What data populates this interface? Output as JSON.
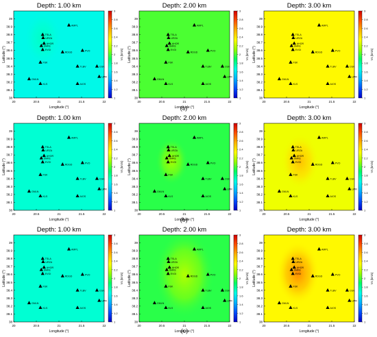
{
  "figure": {
    "row_labels": [
      "(a)",
      "(b)",
      "(c)"
    ],
    "colorbar_label": "Vs (km/s)",
    "colorbar_ticks": [
      "1",
      "1.2",
      "1.4",
      "1.6",
      "1.8",
      "2",
      "2.2",
      "2.4",
      "2.6",
      "2.8",
      "3"
    ],
    "colormap": [
      "#0000c8",
      "#0050ff",
      "#00b4ff",
      "#00ffe6",
      "#00ff64",
      "#96ff00",
      "#ffff00",
      "#ffb400",
      "#ff5000",
      "#d20000"
    ],
    "panel_titles": [
      "Depth: 1.00 km",
      "Depth: 2.00 km",
      "Depth: 3.00 km"
    ]
  },
  "chart_data": [
    {
      "type": "heatmap",
      "title": "Depth: 1.00 km",
      "xlabel": "Longitude (°)",
      "ylabel": "Latitude (°)",
      "xlim": [
        20,
        22
      ],
      "ylim": [
        38,
        39.1
      ],
      "xticks": [
        "20",
        "20.5",
        "21",
        "21.5",
        "22"
      ],
      "yticks": [
        "38",
        "38.1",
        "38.2",
        "38.3",
        "38.4",
        "38.5",
        "38.6",
        "38.7",
        "38.8",
        "38.9",
        "39"
      ],
      "clim": [
        1,
        3
      ],
      "base_value": 1.65,
      "anomalies": [
        {
          "lon": 20.65,
          "lat": 38.75,
          "delta": 0.08,
          "sigma": 0.35
        }
      ],
      "stations": [
        {
          "name": "AMPL",
          "lon": 21.22,
          "lat": 38.92
        },
        {
          "name": "TSLA",
          "lon": 20.64,
          "lat": 38.8
        },
        {
          "name": "URZA",
          "lon": 20.65,
          "lat": 38.76
        },
        {
          "name": "AHOR",
          "lon": 20.67,
          "lat": 38.69
        },
        {
          "name": "SMKE",
          "lon": 20.61,
          "lat": 38.66
        },
        {
          "name": "EVGI",
          "lon": 20.64,
          "lat": 38.61
        },
        {
          "name": "RDGD",
          "lon": 21.08,
          "lat": 38.58
        },
        {
          "name": "PVO",
          "lon": 21.52,
          "lat": 38.6
        },
        {
          "name": "FSK",
          "lon": 20.59,
          "lat": 38.45
        },
        {
          "name": "TLBV",
          "lon": 21.41,
          "lat": 38.4
        },
        {
          "name": "CGK",
          "lon": 21.84,
          "lat": 38.4
        },
        {
          "name": "UPR",
          "lon": 21.89,
          "lat": 38.27
        },
        {
          "name": "GMLN",
          "lon": 20.34,
          "lat": 38.24
        },
        {
          "name": "KLS",
          "lon": 20.59,
          "lat": 38.18
        },
        {
          "name": "AIOS",
          "lon": 21.41,
          "lat": 38.18
        }
      ]
    },
    {
      "type": "heatmap",
      "title": "Depth: 2.00 km",
      "xlabel": "Longitude (°)",
      "ylabel": "Latitude (°)",
      "xlim": [
        20,
        22
      ],
      "ylim": [
        38,
        39.1
      ],
      "xticks": [
        "20",
        "20.5",
        "21",
        "21.5",
        "22"
      ],
      "yticks": [
        "38",
        "38.1",
        "38.2",
        "38.3",
        "38.4",
        "38.5",
        "38.6",
        "38.7",
        "38.8",
        "38.9",
        "39"
      ],
      "clim": [
        1,
        3
      ],
      "base_value": 2.0,
      "anomalies": [],
      "stations": [
        {
          "name": "AMPL",
          "lon": 21.22,
          "lat": 38.92
        },
        {
          "name": "TSLA",
          "lon": 20.64,
          "lat": 38.8
        },
        {
          "name": "URZA",
          "lon": 20.65,
          "lat": 38.76
        },
        {
          "name": "AHOR",
          "lon": 20.67,
          "lat": 38.69
        },
        {
          "name": "SMKE",
          "lon": 20.61,
          "lat": 38.66
        },
        {
          "name": "EVGI",
          "lon": 20.64,
          "lat": 38.61
        },
        {
          "name": "RDGD",
          "lon": 21.08,
          "lat": 38.58
        },
        {
          "name": "PVO",
          "lon": 21.52,
          "lat": 38.6
        },
        {
          "name": "FSK",
          "lon": 20.59,
          "lat": 38.45
        },
        {
          "name": "TLBV",
          "lon": 21.41,
          "lat": 38.4
        },
        {
          "name": "CGK",
          "lon": 21.84,
          "lat": 38.4
        },
        {
          "name": "UPR",
          "lon": 21.89,
          "lat": 38.27
        },
        {
          "name": "GMLN",
          "lon": 20.34,
          "lat": 38.24
        },
        {
          "name": "KLS",
          "lon": 20.59,
          "lat": 38.18
        },
        {
          "name": "AIOS",
          "lon": 21.41,
          "lat": 38.18
        }
      ]
    },
    {
      "type": "heatmap",
      "title": "Depth: 3.00 km",
      "xlabel": "Longitude (°)",
      "ylabel": "Latitude (°)",
      "xlim": [
        20,
        22
      ],
      "ylim": [
        38,
        39.1
      ],
      "xticks": [
        "20",
        "20.5",
        "21",
        "21.5",
        "22"
      ],
      "yticks": [
        "38",
        "38.1",
        "38.2",
        "38.3",
        "38.4",
        "38.5",
        "38.6",
        "38.7",
        "38.8",
        "38.9",
        "39"
      ],
      "clim": [
        1,
        3
      ],
      "base_value": 2.35,
      "anomalies": [],
      "stations": [
        {
          "name": "AMPL",
          "lon": 21.22,
          "lat": 38.92
        },
        {
          "name": "TSLA",
          "lon": 20.64,
          "lat": 38.8
        },
        {
          "name": "URZA",
          "lon": 20.65,
          "lat": 38.76
        },
        {
          "name": "AHOR",
          "lon": 20.67,
          "lat": 38.69
        },
        {
          "name": "SMKE",
          "lon": 20.61,
          "lat": 38.66
        },
        {
          "name": "EVGI",
          "lon": 20.64,
          "lat": 38.61
        },
        {
          "name": "RDGD",
          "lon": 21.08,
          "lat": 38.58
        },
        {
          "name": "PVO",
          "lon": 21.52,
          "lat": 38.6
        },
        {
          "name": "FSK",
          "lon": 20.59,
          "lat": 38.45
        },
        {
          "name": "TLBV",
          "lon": 21.41,
          "lat": 38.4
        },
        {
          "name": "CGK",
          "lon": 21.84,
          "lat": 38.4
        },
        {
          "name": "UPR",
          "lon": 21.89,
          "lat": 38.27
        },
        {
          "name": "GMLN",
          "lon": 20.34,
          "lat": 38.24
        },
        {
          "name": "KLS",
          "lon": 20.59,
          "lat": 38.18
        },
        {
          "name": "AIOS",
          "lon": 21.41,
          "lat": 38.18
        }
      ]
    },
    {
      "type": "heatmap",
      "title": "Depth: 1.00 km",
      "xlabel": "Longitude (°)",
      "ylabel": "Latitude (°)",
      "xlim": [
        20,
        22
      ],
      "ylim": [
        38,
        39.1
      ],
      "xticks": [
        "20",
        "20.5",
        "21",
        "21.5",
        "22"
      ],
      "yticks": [
        "38",
        "38.1",
        "38.2",
        "38.3",
        "38.4",
        "38.5",
        "38.6",
        "38.7",
        "38.8",
        "38.9",
        "39"
      ],
      "clim": [
        1,
        3
      ],
      "base_value": 1.7,
      "anomalies": [],
      "stations": [
        {
          "name": "AMPL",
          "lon": 21.22,
          "lat": 38.92
        },
        {
          "name": "TSLA",
          "lon": 20.64,
          "lat": 38.8
        },
        {
          "name": "URZA",
          "lon": 20.65,
          "lat": 38.76
        },
        {
          "name": "AHOR",
          "lon": 20.67,
          "lat": 38.69
        },
        {
          "name": "SMKE",
          "lon": 20.61,
          "lat": 38.66
        },
        {
          "name": "EVGI",
          "lon": 20.64,
          "lat": 38.61
        },
        {
          "name": "RDGD",
          "lon": 21.08,
          "lat": 38.58
        },
        {
          "name": "PVO",
          "lon": 21.52,
          "lat": 38.6
        },
        {
          "name": "FSK",
          "lon": 20.59,
          "lat": 38.45
        },
        {
          "name": "TLBV",
          "lon": 21.41,
          "lat": 38.4
        },
        {
          "name": "CGK",
          "lon": 21.84,
          "lat": 38.4
        },
        {
          "name": "UPR",
          "lon": 21.89,
          "lat": 38.27
        },
        {
          "name": "GMLN",
          "lon": 20.34,
          "lat": 38.24
        },
        {
          "name": "KLS",
          "lon": 20.59,
          "lat": 38.18
        },
        {
          "name": "AIOS",
          "lon": 21.41,
          "lat": 38.18
        }
      ]
    },
    {
      "type": "heatmap",
      "title": "Depth: 2.00 km",
      "xlabel": "Longitude (°)",
      "ylabel": "Latitude (°)",
      "xlim": [
        20,
        22
      ],
      "ylim": [
        38,
        39.1
      ],
      "xticks": [
        "20",
        "20.5",
        "21",
        "21.5",
        "22"
      ],
      "yticks": [
        "38",
        "38.1",
        "38.2",
        "38.3",
        "38.4",
        "38.5",
        "38.6",
        "38.7",
        "38.8",
        "38.9",
        "39"
      ],
      "clim": [
        1,
        3
      ],
      "base_value": 1.95,
      "anomalies": [
        {
          "lon": 20.72,
          "lat": 38.62,
          "delta": 0.2,
          "sigma": 0.3
        }
      ],
      "stations": [
        {
          "name": "AMPL",
          "lon": 21.22,
          "lat": 38.92
        },
        {
          "name": "TSLA",
          "lon": 20.64,
          "lat": 38.8
        },
        {
          "name": "URZA",
          "lon": 20.65,
          "lat": 38.76
        },
        {
          "name": "AHOR",
          "lon": 20.67,
          "lat": 38.69
        },
        {
          "name": "SMKE",
          "lon": 20.61,
          "lat": 38.66
        },
        {
          "name": "EVGI",
          "lon": 20.64,
          "lat": 38.61
        },
        {
          "name": "RDGD",
          "lon": 21.08,
          "lat": 38.58
        },
        {
          "name": "PVO",
          "lon": 21.52,
          "lat": 38.6
        },
        {
          "name": "FSK",
          "lon": 20.59,
          "lat": 38.45
        },
        {
          "name": "TLBV",
          "lon": 21.41,
          "lat": 38.4
        },
        {
          "name": "CGK",
          "lon": 21.84,
          "lat": 38.4
        },
        {
          "name": "UPR",
          "lon": 21.89,
          "lat": 38.27
        },
        {
          "name": "GMLN",
          "lon": 20.34,
          "lat": 38.24
        },
        {
          "name": "KLS",
          "lon": 20.59,
          "lat": 38.18
        },
        {
          "name": "AIOS",
          "lon": 21.41,
          "lat": 38.18
        }
      ]
    },
    {
      "type": "heatmap",
      "title": "Depth: 3.00 km",
      "xlabel": "Longitude (°)",
      "ylabel": "Latitude (°)",
      "xlim": [
        20,
        22
      ],
      "ylim": [
        38,
        39.1
      ],
      "xticks": [
        "20",
        "20.5",
        "21",
        "21.5",
        "22"
      ],
      "yticks": [
        "38",
        "38.1",
        "38.2",
        "38.3",
        "38.4",
        "38.5",
        "38.6",
        "38.7",
        "38.8",
        "38.9",
        "39"
      ],
      "clim": [
        1,
        3
      ],
      "base_value": 2.3,
      "anomalies": [
        {
          "lon": 20.8,
          "lat": 38.62,
          "delta": 0.22,
          "sigma": 0.35
        }
      ],
      "stations": [
        {
          "name": "AMPL",
          "lon": 21.22,
          "lat": 38.92
        },
        {
          "name": "TSLA",
          "lon": 20.64,
          "lat": 38.8
        },
        {
          "name": "URZA",
          "lon": 20.65,
          "lat": 38.76
        },
        {
          "name": "AHOR",
          "lon": 20.67,
          "lat": 38.69
        },
        {
          "name": "SMKE",
          "lon": 20.61,
          "lat": 38.66
        },
        {
          "name": "EVGI",
          "lon": 20.64,
          "lat": 38.61
        },
        {
          "name": "RDGD",
          "lon": 21.08,
          "lat": 38.58
        },
        {
          "name": "PVO",
          "lon": 21.52,
          "lat": 38.6
        },
        {
          "name": "FSK",
          "lon": 20.59,
          "lat": 38.45
        },
        {
          "name": "TLBV",
          "lon": 21.41,
          "lat": 38.4
        },
        {
          "name": "CGK",
          "lon": 21.84,
          "lat": 38.4
        },
        {
          "name": "UPR",
          "lon": 21.89,
          "lat": 38.27
        },
        {
          "name": "GMLN",
          "lon": 20.34,
          "lat": 38.24
        },
        {
          "name": "KLS",
          "lon": 20.59,
          "lat": 38.18
        },
        {
          "name": "AIOS",
          "lon": 21.41,
          "lat": 38.18
        }
      ]
    },
    {
      "type": "heatmap",
      "title": "Depth: 1.00 km",
      "xlabel": "Longitude (°)",
      "ylabel": "Latitude (°)",
      "xlim": [
        20,
        22
      ],
      "ylim": [
        38,
        39.1
      ],
      "xticks": [
        "20",
        "20.5",
        "21",
        "21.5",
        "22"
      ],
      "yticks": [
        "38",
        "38.1",
        "38.2",
        "38.3",
        "38.4",
        "38.5",
        "38.6",
        "38.7",
        "38.8",
        "38.9",
        "39"
      ],
      "clim": [
        1,
        3
      ],
      "base_value": 1.7,
      "anomalies": [],
      "stations": [
        {
          "name": "AMPL",
          "lon": 21.22,
          "lat": 38.92
        },
        {
          "name": "TSLA",
          "lon": 20.64,
          "lat": 38.8
        },
        {
          "name": "URZA",
          "lon": 20.65,
          "lat": 38.76
        },
        {
          "name": "AHOR",
          "lon": 20.67,
          "lat": 38.69
        },
        {
          "name": "SMKE",
          "lon": 20.61,
          "lat": 38.66
        },
        {
          "name": "EVGI",
          "lon": 20.64,
          "lat": 38.61
        },
        {
          "name": "RDGD",
          "lon": 21.08,
          "lat": 38.58
        },
        {
          "name": "PVO",
          "lon": 21.52,
          "lat": 38.6
        },
        {
          "name": "FSK",
          "lon": 20.59,
          "lat": 38.45
        },
        {
          "name": "TLBV",
          "lon": 21.41,
          "lat": 38.4
        },
        {
          "name": "CGK",
          "lon": 21.84,
          "lat": 38.4
        },
        {
          "name": "UPR",
          "lon": 21.89,
          "lat": 38.27
        },
        {
          "name": "GMLN",
          "lon": 20.34,
          "lat": 38.24
        },
        {
          "name": "KLS",
          "lon": 20.59,
          "lat": 38.18
        },
        {
          "name": "AIOS",
          "lon": 21.41,
          "lat": 38.18
        }
      ]
    },
    {
      "type": "heatmap",
      "title": "Depth: 2.00 km",
      "xlabel": "Longitude (°)",
      "ylabel": "Latitude (°)",
      "xlim": [
        20,
        22
      ],
      "ylim": [
        38,
        39.1
      ],
      "xticks": [
        "20",
        "20.5",
        "21",
        "21.5",
        "22"
      ],
      "yticks": [
        "38",
        "38.1",
        "38.2",
        "38.3",
        "38.4",
        "38.5",
        "38.6",
        "38.7",
        "38.8",
        "38.9",
        "39"
      ],
      "clim": [
        1,
        3
      ],
      "base_value": 1.95,
      "anomalies": [
        {
          "lon": 21.0,
          "lat": 38.6,
          "delta": 0.22,
          "sigma": 0.55
        }
      ],
      "stations": [
        {
          "name": "AMPL",
          "lon": 21.22,
          "lat": 38.92
        },
        {
          "name": "TSLA",
          "lon": 20.64,
          "lat": 38.8
        },
        {
          "name": "URZA",
          "lon": 20.65,
          "lat": 38.76
        },
        {
          "name": "AHOR",
          "lon": 20.67,
          "lat": 38.69
        },
        {
          "name": "SMKE",
          "lon": 20.61,
          "lat": 38.66
        },
        {
          "name": "EVGI",
          "lon": 20.64,
          "lat": 38.61
        },
        {
          "name": "RDGD",
          "lon": 21.08,
          "lat": 38.58
        },
        {
          "name": "PVO",
          "lon": 21.52,
          "lat": 38.6
        },
        {
          "name": "FSK",
          "lon": 20.59,
          "lat": 38.45
        },
        {
          "name": "TLBV",
          "lon": 21.41,
          "lat": 38.4
        },
        {
          "name": "CGK",
          "lon": 21.84,
          "lat": 38.4
        },
        {
          "name": "UPR",
          "lon": 21.89,
          "lat": 38.27
        },
        {
          "name": "GMLN",
          "lon": 20.34,
          "lat": 38.24
        },
        {
          "name": "KLS",
          "lon": 20.59,
          "lat": 38.18
        },
        {
          "name": "AIOS",
          "lon": 21.41,
          "lat": 38.18
        }
      ]
    },
    {
      "type": "heatmap",
      "title": "Depth: 3.00 km",
      "xlabel": "Longitude (°)",
      "ylabel": "Latitude (°)",
      "xlim": [
        20,
        22
      ],
      "ylim": [
        38,
        39.1
      ],
      "xticks": [
        "20",
        "20.5",
        "21",
        "21.5",
        "22"
      ],
      "yticks": [
        "38",
        "38.1",
        "38.2",
        "38.3",
        "38.4",
        "38.5",
        "38.6",
        "38.7",
        "38.8",
        "38.9",
        "39"
      ],
      "clim": [
        1,
        3
      ],
      "base_value": 2.35,
      "anomalies": [
        {
          "lon": 20.75,
          "lat": 38.62,
          "delta": 0.3,
          "sigma": 0.4
        }
      ],
      "stations": [
        {
          "name": "AMPL",
          "lon": 21.22,
          "lat": 38.92
        },
        {
          "name": "TSLA",
          "lon": 20.64,
          "lat": 38.8
        },
        {
          "name": "URZA",
          "lon": 20.65,
          "lat": 38.76
        },
        {
          "name": "AHOR",
          "lon": 20.67,
          "lat": 38.69
        },
        {
          "name": "SMKE",
          "lon": 20.61,
          "lat": 38.66
        },
        {
          "name": "EVGI",
          "lon": 20.64,
          "lat": 38.61
        },
        {
          "name": "RDGD",
          "lon": 21.08,
          "lat": 38.58
        },
        {
          "name": "PVO",
          "lon": 21.52,
          "lat": 38.6
        },
        {
          "name": "FSK",
          "lon": 20.59,
          "lat": 38.45
        },
        {
          "name": "TLBV",
          "lon": 21.41,
          "lat": 38.4
        },
        {
          "name": "CGK",
          "lon": 21.84,
          "lat": 38.4
        },
        {
          "name": "UPR",
          "lon": 21.89,
          "lat": 38.27
        },
        {
          "name": "GMLN",
          "lon": 20.34,
          "lat": 38.24
        },
        {
          "name": "KLS",
          "lon": 20.59,
          "lat": 38.18
        },
        {
          "name": "AIOS",
          "lon": 21.41,
          "lat": 38.18
        }
      ]
    }
  ]
}
